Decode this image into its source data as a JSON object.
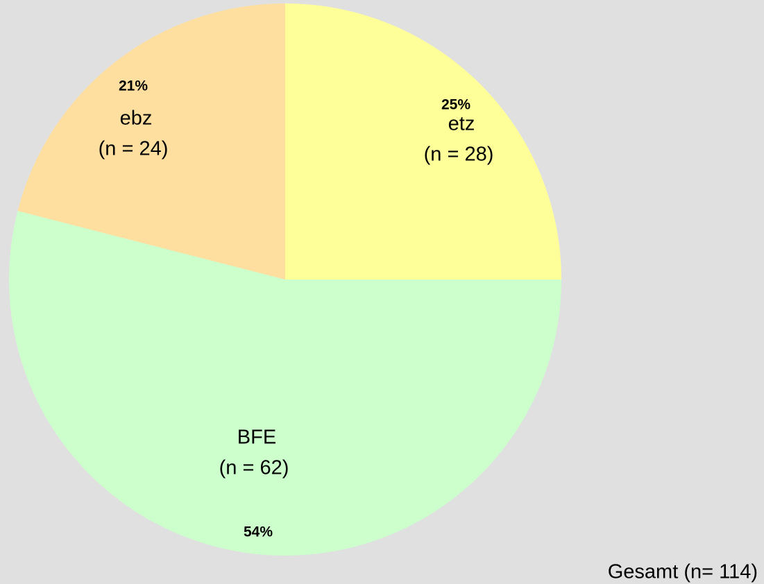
{
  "chart_data": {
    "type": "pie",
    "categories": [
      "etz",
      "BFE",
      "ebz"
    ],
    "values": [
      25,
      54,
      21
    ],
    "value_labels": [
      "25%",
      "54%",
      "21%"
    ],
    "n_labels": [
      "(n = 28)",
      "(n = 62)",
      "(n = 24)"
    ],
    "colors": [
      "#ffff99",
      "#ccffcc",
      "#ffdf9f"
    ],
    "annotation": "Gesamt (n= 114)"
  }
}
